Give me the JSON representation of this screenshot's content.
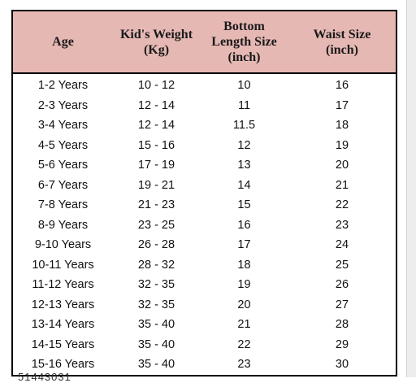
{
  "table": {
    "headers": [
      [
        "Age"
      ],
      [
        "Kid's Weight",
        "(Kg)"
      ],
      [
        "Bottom",
        "Length Size",
        "(inch)"
      ],
      [
        "Waist Size",
        "(inch)"
      ]
    ],
    "rows": [
      [
        "1-2 Years",
        "10 - 12",
        "10",
        "16"
      ],
      [
        "2-3 Years",
        "12 - 14",
        "11",
        "17"
      ],
      [
        "3-4 Years",
        "12 - 14",
        "11.5",
        "18"
      ],
      [
        "4-5 Years",
        "15 - 16",
        "12",
        "19"
      ],
      [
        "5-6 Years",
        "17 - 19",
        "13",
        "20"
      ],
      [
        "6-7 Years",
        "19 - 21",
        "14",
        "21"
      ],
      [
        "7-8 Years",
        "21 - 23",
        "15",
        "22"
      ],
      [
        "8-9 Years",
        "23 - 25",
        "16",
        "23"
      ],
      [
        "9-10 Years",
        "26 - 28",
        "17",
        "24"
      ],
      [
        "10-11 Years",
        "28 - 32",
        "18",
        "25"
      ],
      [
        "11-12 Years",
        "32 - 35",
        "19",
        "26"
      ],
      [
        "12-13 Years",
        "32 - 35",
        "20",
        "27"
      ],
      [
        "13-14 Years",
        "35 - 40",
        "21",
        "28"
      ],
      [
        "14-15 Years",
        "35 - 40",
        "22",
        "29"
      ],
      [
        "15-16 Years",
        "35 - 40",
        "23",
        "30"
      ]
    ]
  },
  "footer_text": "51443031",
  "colors": {
    "header_background": "#e6b8b4",
    "border": "#000000"
  }
}
